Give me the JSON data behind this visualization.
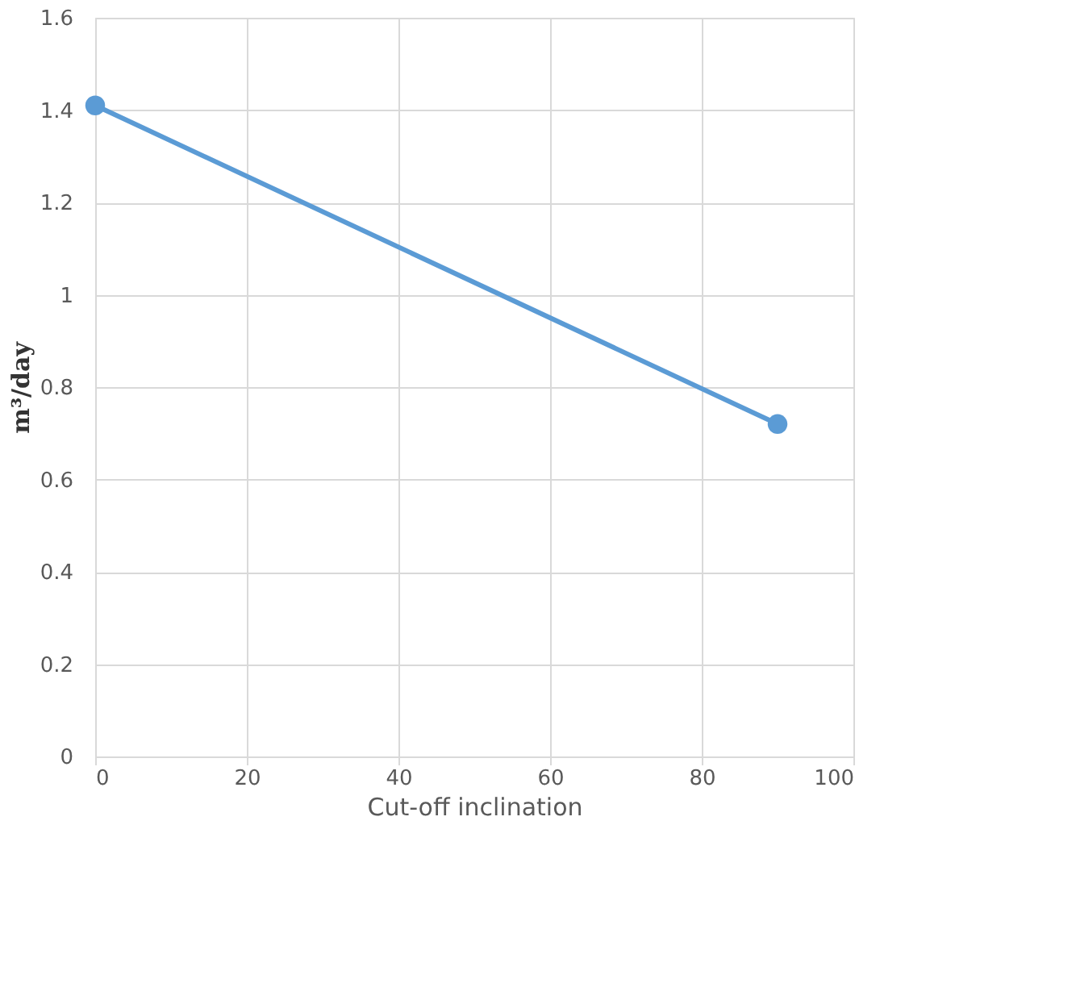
{
  "chart_data": {
    "type": "line",
    "xlabel": "Cut-off inclination",
    "ylabel": "m³/day",
    "x": [
      0,
      90
    ],
    "series": [
      {
        "color": "#5b9bd5",
        "values": [
          1.41,
          0.72
        ]
      }
    ],
    "xlim": [
      0,
      100
    ],
    "xticks": [
      0,
      20,
      40,
      60,
      80,
      100
    ],
    "ylim": [
      0,
      1.6
    ],
    "yticks": [
      0,
      0.2,
      0.4,
      0.6,
      0.8,
      1,
      1.2,
      1.4,
      1.6
    ],
    "grid": true,
    "marker": "circle",
    "line_style": "solid"
  }
}
